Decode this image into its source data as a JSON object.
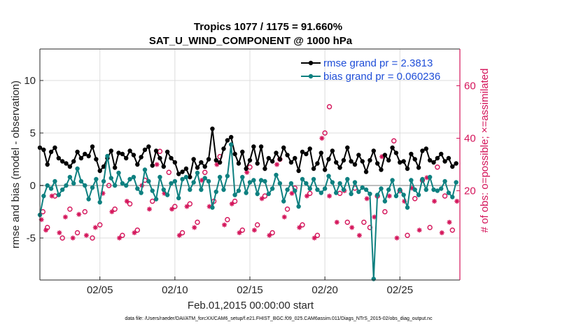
{
  "chart_data": {
    "type": "line",
    "title": "Tropics 1077 / 1175 = 91.660%",
    "subtitle": "SAT_U_WIND_COMPONENT @ 1000 hPa",
    "xlabel": "Feb.01,2015 00:00:00 start",
    "ylabel": "rmse and bias (model - observation)",
    "y2label": "# of obs: o=possible; ×=assimilated",
    "footer": "data file: /Users/raeder/DAI/ATM_forcXX/CAM6_setup/f.e21.FHIST_BGC.f09_025.CAM6assim.011/Diags_NTrS_2015-02/obs_diag_output.nc",
    "xlim": [
      1,
      29
    ],
    "ylim": [
      -9,
      13
    ],
    "y2lim": [
      -14,
      74
    ],
    "y_ticks": [
      -5,
      0,
      5,
      10
    ],
    "y2_ticks": [
      20,
      40,
      60
    ],
    "x_ticks": [
      5,
      10,
      15,
      20,
      25
    ],
    "x_tick_labels": [
      "02/05",
      "02/10",
      "02/15",
      "02/20",
      "02/25"
    ],
    "zero_line": 0,
    "series": [
      {
        "name": "rmse grand pr = 2.3813",
        "color": "#000000",
        "x": [
          1.0,
          1.25,
          1.5,
          1.75,
          2.0,
          2.25,
          2.5,
          2.75,
          3.0,
          3.25,
          3.5,
          3.75,
          4.0,
          4.25,
          4.5,
          4.75,
          5.0,
          5.25,
          5.5,
          5.75,
          6.0,
          6.25,
          6.5,
          6.75,
          7.0,
          7.25,
          7.5,
          7.75,
          8.0,
          8.25,
          8.5,
          8.75,
          9.0,
          9.25,
          9.5,
          9.75,
          10.0,
          10.25,
          10.5,
          10.75,
          11.0,
          11.25,
          11.5,
          11.75,
          12.0,
          12.25,
          12.5,
          12.75,
          13.0,
          13.25,
          13.5,
          13.75,
          14.0,
          14.25,
          14.5,
          14.75,
          15.0,
          15.25,
          15.5,
          15.75,
          16.0,
          16.25,
          16.5,
          16.75,
          17.0,
          17.25,
          17.5,
          17.75,
          18.0,
          18.25,
          18.5,
          18.75,
          19.0,
          19.25,
          19.5,
          19.75,
          20.0,
          20.25,
          20.5,
          20.75,
          21.0,
          21.25,
          21.5,
          21.75,
          22.0,
          22.25,
          22.5,
          22.75,
          23.0,
          23.25,
          23.5,
          23.75,
          24.0,
          24.25,
          24.5,
          24.75,
          25.0,
          25.25,
          25.5,
          25.75,
          26.0,
          26.25,
          26.5,
          26.75,
          27.0,
          27.25,
          27.5,
          27.75,
          28.0,
          28.25,
          28.5,
          28.75
        ],
        "values": [
          3.6,
          3.4,
          2.0,
          3.2,
          3.6,
          2.6,
          2.3,
          2.1,
          1.8,
          2.3,
          3.2,
          2.6,
          3.0,
          2.8,
          3.7,
          2.5,
          1.4,
          1.8,
          2.6,
          3.3,
          1.7,
          3.1,
          3.0,
          2.6,
          3.3,
          2.9,
          2.0,
          2.7,
          3.4,
          3.7,
          1.9,
          3.3,
          2.6,
          1.8,
          3.2,
          2.6,
          2.2,
          1.1,
          1.3,
          1.6,
          0.8,
          2.5,
          1.7,
          2.2,
          1.8,
          2.5,
          5.4,
          2.4,
          2.2,
          3.5,
          4.3,
          4.6,
          3.0,
          2.1,
          3.2,
          1.6,
          2.4,
          3.7,
          2.1,
          3.7,
          1.6,
          2.6,
          2.3,
          3.1,
          2.5,
          3.6,
          2.9,
          2.2,
          2.6,
          1.4,
          3.2,
          3.0,
          3.5,
          1.6,
          2.1,
          3.1,
          1.5,
          2.5,
          3.3,
          2.2,
          1.7,
          2.4,
          3.6,
          2.3,
          2.0,
          2.9,
          2.3,
          1.3,
          2.4,
          3.3,
          2.1,
          1.5,
          2.9,
          2.4,
          3.6,
          3.1,
          2.2,
          2.3,
          1.6,
          3.0,
          2.5,
          1.7,
          3.3,
          3.5,
          2.4,
          2.2,
          2.6,
          3.0,
          2.3,
          2.6,
          1.8,
          2.1
        ]
      },
      {
        "name": "bias grand pr = 0.060236",
        "color": "#0e8080",
        "x": [
          1.0,
          1.25,
          1.5,
          1.75,
          2.0,
          2.25,
          2.5,
          2.75,
          3.0,
          3.25,
          3.5,
          3.75,
          4.0,
          4.25,
          4.5,
          4.75,
          5.0,
          5.25,
          5.5,
          5.75,
          6.0,
          6.25,
          6.5,
          6.75,
          7.0,
          7.25,
          7.5,
          7.75,
          8.0,
          8.25,
          8.5,
          8.75,
          9.0,
          9.25,
          9.5,
          9.75,
          10.0,
          10.25,
          10.5,
          10.75,
          11.0,
          11.25,
          11.5,
          11.75,
          12.0,
          12.25,
          12.5,
          12.75,
          13.0,
          13.25,
          13.5,
          13.75,
          14.0,
          14.25,
          14.5,
          14.75,
          15.0,
          15.25,
          15.5,
          15.75,
          16.0,
          16.25,
          16.5,
          16.75,
          17.0,
          17.25,
          17.5,
          17.75,
          18.0,
          18.25,
          18.5,
          18.75,
          19.0,
          19.25,
          19.5,
          19.75,
          20.0,
          20.25,
          20.5,
          20.75,
          21.0,
          21.25,
          21.5,
          21.75,
          22.0,
          22.25,
          22.5,
          22.75,
          23.0,
          23.25,
          23.5,
          23.75,
          24.0,
          24.25,
          24.5,
          24.75,
          25.0,
          25.25,
          25.5,
          25.75,
          26.0,
          26.25,
          26.5,
          26.75,
          27.0,
          27.25,
          27.5,
          27.75,
          28.0,
          28.25,
          28.5,
          28.75
        ],
        "values": [
          -2.8,
          -1.0,
          0.0,
          -0.3,
          0.4,
          -0.9,
          -0.4,
          0.0,
          0.8,
          0.2,
          1.6,
          0.4,
          0.0,
          -1.3,
          -0.2,
          0.6,
          -1.6,
          0.4,
          2.8,
          0.7,
          0.0,
          1.2,
          0.2,
          0.0,
          0.6,
          0.8,
          -0.3,
          -0.7,
          1.5,
          0.4,
          -0.5,
          -1.3,
          0.8,
          -0.4,
          -0.9,
          0.2,
          0.4,
          -1.2,
          0.6,
          0.8,
          -0.4,
          0.3,
          1.2,
          -0.4,
          0.7,
          0.4,
          -2.1,
          -0.6,
          0.8,
          -0.4,
          0.9,
          3.9,
          -0.9,
          -0.5,
          0.8,
          -0.7,
          0.3,
          0.5,
          -0.8,
          0.5,
          0.4,
          -0.8,
          -0.3,
          1.0,
          0.2,
          -1.5,
          -0.4,
          0.2,
          -0.5,
          -2.0,
          0.6,
          0.2,
          -0.3,
          0.6,
          -0.4,
          -0.7,
          -0.3,
          0.9,
          0.3,
          -0.7,
          0.2,
          -0.4,
          0.6,
          -0.8,
          0.3,
          -0.6,
          -0.2,
          -0.4,
          -0.8,
          -8.9,
          -0.9,
          -0.3,
          -1.5,
          -0.4,
          0.5,
          -1.0,
          -0.4,
          -0.9,
          -2.1,
          0.5,
          -0.4,
          -0.9,
          0.6,
          -0.4,
          0.8,
          -0.4,
          -0.5,
          -0.3,
          0.4,
          -0.7,
          -1.1,
          0.3
        ]
      },
      {
        "name": "possible",
        "color": "#d4145a",
        "marker": "o",
        "x": [
          1.2,
          1.5,
          2.0,
          2.5,
          3.0,
          3.5,
          4.0,
          4.5,
          5.0,
          5.6,
          6.0,
          6.5,
          7.0,
          7.5,
          8.0,
          8.5,
          9.0,
          9.6,
          10.0,
          10.5,
          11.0,
          11.5,
          12.0,
          12.6,
          13.0,
          13.5,
          14.0,
          14.5,
          15.0,
          15.5,
          16.0,
          16.5,
          17.0,
          17.5,
          18.0,
          18.5,
          19.0,
          19.5,
          20.0,
          20.3,
          21.0,
          21.5,
          22.0,
          22.6,
          23.0,
          23.5,
          24.0,
          24.6,
          25.0,
          25.5,
          26.0,
          26.5,
          27.0,
          27.5,
          28.0,
          28.5
        ],
        "values": [
          12,
          6,
          18,
          2,
          13,
          4,
          12,
          2,
          7,
          22,
          13,
          3,
          15,
          5,
          24,
          16,
          35,
          27,
          14,
          4,
          15,
          8,
          27,
          16,
          33,
          9,
          16,
          5,
          29,
          7,
          18,
          4,
          32,
          13,
          21,
          7,
          19,
          3,
          42,
          52,
          19,
          8,
          21,
          8,
          6,
          18,
          12,
          39,
          20,
          3,
          17,
          24,
          6,
          29,
          18,
          5
        ]
      },
      {
        "name": "assimilated",
        "color": "#d4145a",
        "marker": "*",
        "x": [
          1.1,
          1.4,
          1.8,
          2.3,
          2.7,
          3.2,
          3.6,
          4.1,
          4.7,
          5.2,
          5.8,
          6.3,
          6.8,
          7.3,
          7.8,
          8.3,
          8.8,
          9.3,
          9.8,
          10.3,
          10.8,
          11.3,
          11.8,
          12.3,
          12.8,
          13.3,
          13.8,
          14.3,
          14.8,
          15.3,
          15.8,
          16.3,
          16.8,
          17.3,
          17.8,
          18.3,
          18.8,
          19.3,
          19.8,
          20.3,
          20.8,
          21.3,
          21.8,
          22.3,
          22.8,
          23.3,
          23.8,
          24.3,
          24.8,
          25.3,
          25.8,
          26.3,
          26.8,
          27.3,
          27.8,
          28.3,
          28.8
        ],
        "values": [
          9,
          5,
          18,
          4,
          10,
          2,
          11,
          3,
          6,
          19,
          12,
          2,
          16,
          4,
          22,
          13,
          30,
          19,
          13,
          3,
          14,
          6,
          24,
          14,
          30,
          7,
          15,
          4,
          27,
          5,
          17,
          3,
          30,
          10,
          19,
          6,
          18,
          2,
          40,
          18,
          8,
          20,
          6,
          3,
          17,
          10,
          33,
          18,
          2,
          16,
          21,
          5,
          25,
          16,
          4,
          8,
          16
        ]
      }
    ],
    "legend_position": "top-right"
  }
}
